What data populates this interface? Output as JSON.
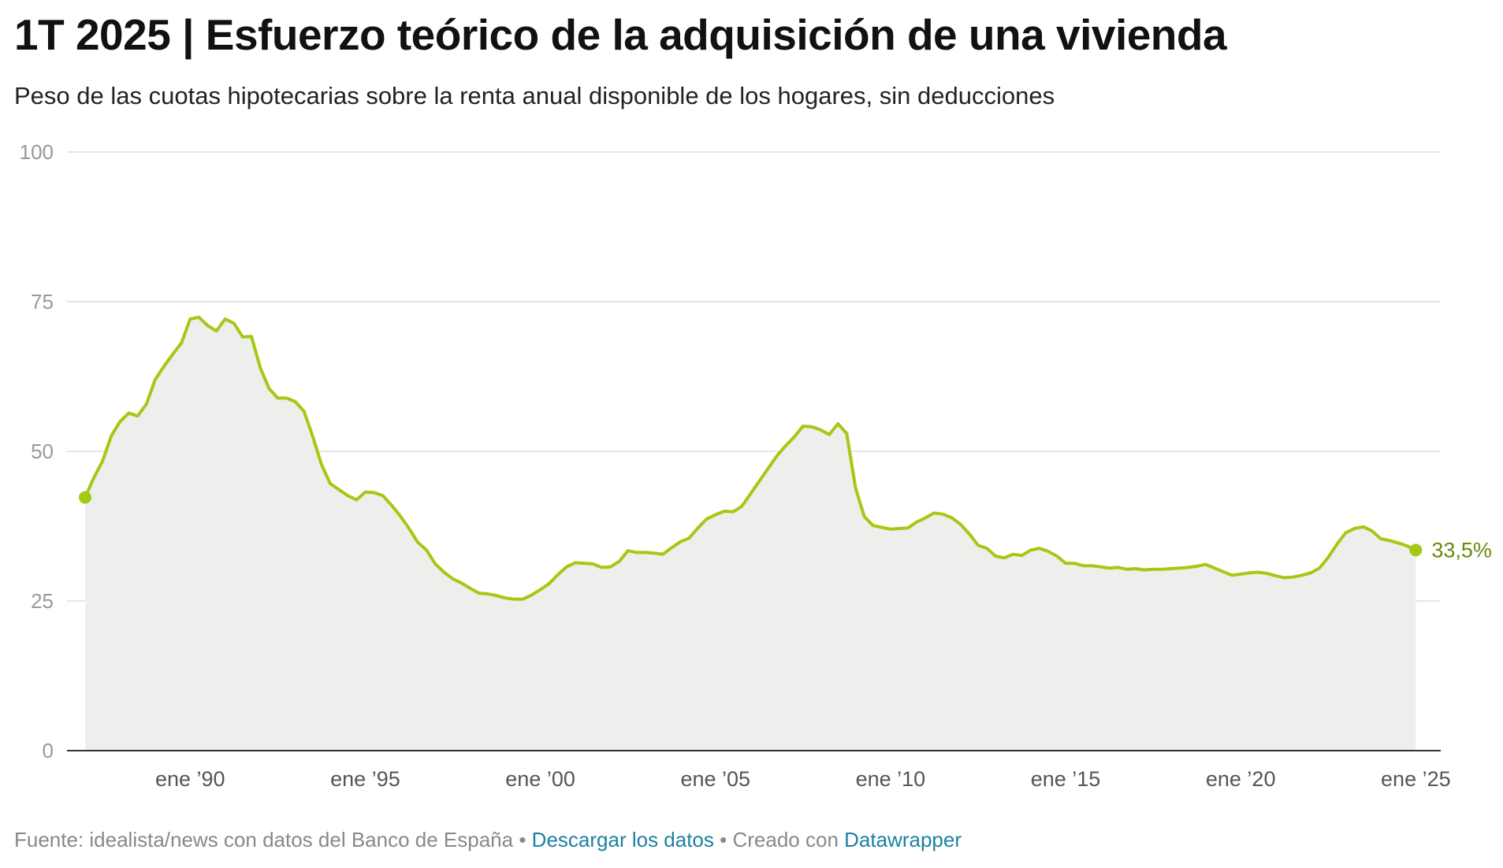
{
  "header": {
    "title": "1T 2025 | Esfuerzo teórico de la adquisición de una vivienda",
    "subtitle": "Peso de las cuotas hipotecarias sobre la renta anual disponible de los hogares, sin deducciones"
  },
  "footer": {
    "source": "Fuente: idealista/news con datos del Banco de España",
    "separator": "•",
    "download_label": "Descargar los datos",
    "created_label": "Creado con",
    "datawrapper_label": "Datawrapper"
  },
  "colors": {
    "line": "#a3c912",
    "area": "#eeeeec",
    "end_label": "#6a8a0a",
    "grid": "#dddddd",
    "axis_text": "#999999",
    "link": "#1d81a2"
  },
  "chart_data": {
    "type": "area",
    "end_label": "33,5%",
    "ylim": [
      0,
      100
    ],
    "y_ticks": [
      0,
      25,
      50,
      75,
      100
    ],
    "y_tick_labels": [
      "0",
      "25",
      "50",
      "75",
      "100"
    ],
    "xlim": [
      1987.0,
      2025.15
    ],
    "x_ticks": [
      1990,
      1995,
      2000,
      2005,
      2010,
      2015,
      2020,
      2025
    ],
    "x_tick_labels": [
      "ene ’90",
      "ene ’95",
      "ene ’00",
      "ene ’05",
      "ene ’10",
      "ene ’15",
      "ene ’20",
      "ene ’25"
    ],
    "grid": true,
    "series": [
      {
        "x": [
          1987.0,
          1987.25,
          1987.5,
          1987.75,
          1988.0,
          1988.25,
          1988.5,
          1988.75,
          1989.0,
          1989.25,
          1989.5,
          1989.75,
          1990.0,
          1990.25,
          1990.5,
          1990.75,
          1991.0,
          1991.25,
          1991.5,
          1991.75,
          1992.0,
          1992.25,
          1992.5,
          1992.75,
          1993.0,
          1993.25,
          1993.5,
          1993.75,
          1994.0,
          1994.25,
          1994.5,
          1994.75,
          1995.0,
          1995.25,
          1995.5,
          1995.75,
          1996.0,
          1996.25,
          1996.5,
          1996.75,
          1997.0,
          1997.25,
          1997.5,
          1997.75,
          1998.0,
          1998.25,
          1998.5,
          1998.75,
          1999.0,
          1999.25,
          1999.5,
          1999.75,
          2000.0,
          2000.25,
          2000.5,
          2000.75,
          2001.0,
          2001.25,
          2001.5,
          2001.75,
          2002.0,
          2002.25,
          2002.5,
          2002.75,
          2003.0,
          2003.25,
          2003.5,
          2003.75,
          2004.0,
          2004.25,
          2004.5,
          2004.75,
          2005.0,
          2005.25,
          2005.5,
          2005.75,
          2006.0,
          2006.25,
          2006.5,
          2006.75,
          2007.0,
          2007.25,
          2007.5,
          2007.75,
          2008.0,
          2008.25,
          2008.5,
          2008.75,
          2009.0,
          2009.25,
          2009.5,
          2009.75,
          2010.0,
          2010.25,
          2010.5,
          2010.75,
          2011.0,
          2011.25,
          2011.5,
          2011.75,
          2012.0,
          2012.25,
          2012.5,
          2012.75,
          2013.0,
          2013.25,
          2013.5,
          2013.75,
          2014.0,
          2014.25,
          2014.5,
          2014.75,
          2015.0,
          2015.25,
          2015.5,
          2015.75,
          2016.0,
          2016.25,
          2016.5,
          2016.75,
          2017.0,
          2017.25,
          2017.5,
          2017.75,
          2018.0,
          2018.25,
          2018.5,
          2018.75,
          2019.0,
          2019.25,
          2019.5,
          2019.75,
          2020.0,
          2020.25,
          2020.5,
          2020.75,
          2021.0,
          2021.25,
          2021.5,
          2021.75,
          2022.0,
          2022.25,
          2022.5,
          2022.75,
          2023.0,
          2023.25,
          2023.5,
          2023.75,
          2024.0,
          2024.25,
          2024.5,
          2024.75,
          2025.0
        ],
        "values": [
          42.3,
          45.6,
          48.4,
          52.6,
          55.0,
          56.4,
          55.9,
          57.9,
          62.0,
          64.2,
          66.2,
          68.1,
          72.1,
          72.4,
          71.0,
          70.1,
          72.1,
          71.4,
          69.1,
          69.2,
          64.0,
          60.5,
          58.9,
          58.9,
          58.3,
          56.7,
          52.5,
          47.8,
          44.6,
          43.6,
          42.6,
          41.9,
          43.2,
          43.1,
          42.6,
          41.0,
          39.2,
          37.1,
          34.8,
          33.5,
          31.2,
          29.8,
          28.7,
          28.0,
          27.1,
          26.3,
          26.2,
          25.9,
          25.5,
          25.3,
          25.3,
          26.0,
          26.9,
          27.9,
          29.4,
          30.7,
          31.4,
          31.3,
          31.2,
          30.6,
          30.7,
          31.6,
          33.4,
          33.1,
          33.1,
          33.0,
          32.8,
          33.9,
          34.9,
          35.5,
          37.2,
          38.7,
          39.4,
          40.0,
          39.9,
          40.8,
          42.9,
          45.0,
          47.1,
          49.2,
          50.9,
          52.4,
          54.2,
          54.1,
          53.6,
          52.8,
          54.6,
          53.0,
          43.9,
          39.1,
          37.6,
          37.3,
          37.0,
          37.1,
          37.2,
          38.2,
          38.9,
          39.7,
          39.5,
          38.9,
          37.8,
          36.2,
          34.3,
          33.8,
          32.5,
          32.2,
          32.8,
          32.6,
          33.5,
          33.8,
          33.3,
          32.5,
          31.3,
          31.3,
          30.9,
          30.9,
          30.7,
          30.5,
          30.6,
          30.3,
          30.4,
          30.2,
          30.3,
          30.3,
          30.4,
          30.5,
          30.6,
          30.8,
          31.1,
          30.5,
          29.9,
          29.3,
          29.5,
          29.7,
          29.8,
          29.6,
          29.2,
          28.9,
          29.0,
          29.3,
          29.7,
          30.5,
          32.3,
          34.5,
          36.4,
          37.1,
          37.4,
          36.7,
          35.4,
          35.1,
          34.7,
          34.2,
          33.5
        ]
      }
    ]
  }
}
